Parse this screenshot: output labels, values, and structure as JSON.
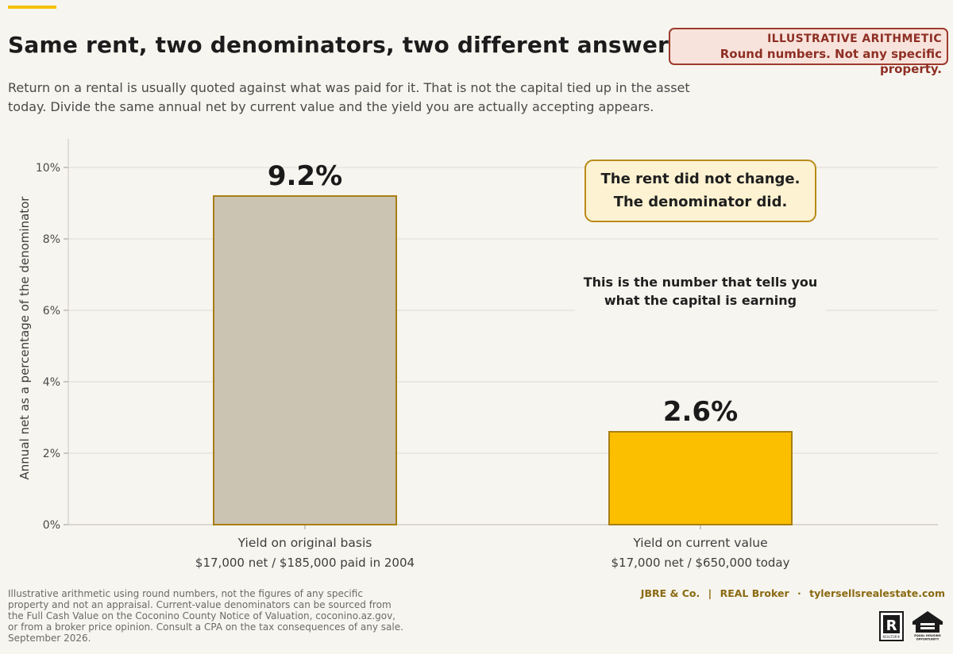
{
  "header": {
    "title": "Same rent, two denominators, two different answers",
    "subtitle": "Return on a rental is usually quoted against what was paid for it. That is not the capital tied up in the asset today. Divide the same annual net by current value and the yield you are actually accepting appears."
  },
  "badge": {
    "line1": "ILLUSTRATIVE ARITHMETIC",
    "line2": "Round numbers. Not any specific property."
  },
  "chart_data": {
    "type": "bar",
    "title": "Same rent, two denominators, two different answers",
    "ylabel": "Annual net as a percentage of the denominator",
    "ylim": [
      0,
      10.8
    ],
    "yticks": [
      0,
      2,
      4,
      6,
      8,
      10
    ],
    "ytick_labels": [
      "0%",
      "2%",
      "4%",
      "6%",
      "8%",
      "10%"
    ],
    "grid": true,
    "categories": [
      "Yield on original basis",
      "Yield on current value"
    ],
    "category_sublabels": [
      "$17,000 net  /  $185,000 paid in 2004",
      "$17,000 net  /  $650,000 today"
    ],
    "values": [
      9.2,
      2.6
    ],
    "value_labels": [
      "9.2%",
      "2.6%"
    ],
    "bar_colors": [
      "#cbc4b3",
      "#fbbf00"
    ],
    "bar_edge_color": "#a87f14",
    "annotations": {
      "box_text": [
        "The rent did not change.",
        "The denominator did."
      ],
      "note_text": [
        "This is the number that tells you",
        "what the capital is earning"
      ]
    }
  },
  "colors": {
    "background": "#f7f5ef",
    "accent": "#f5c000",
    "badge_text": "#8e2f24",
    "brand_text": "#8a6a12"
  },
  "footer": {
    "footnote": "Illustrative arithmetic using round numbers, not the figures of any specific property and not an appraisal. Current-value denominators can be sourced from the Full Cash Value on the Coconino County Notice of Valuation, coconino.az.gov, or from a broker price opinion. Consult a CPA on the tax consequences of any sale. September 2026.",
    "brand_name": "JBRE & Co.",
    "brand_affiliation": "REAL Broker",
    "brand_dot": "·",
    "brand_site": "tylersellsrealestate.com",
    "realtor_logo": "realtor-logo",
    "equal_housing_logo": "equal-housing-opportunity-logo",
    "realtor_text": "REALTOR®",
    "equal_housing_text": "EQUAL HOUSING OPPORTUNITY"
  }
}
